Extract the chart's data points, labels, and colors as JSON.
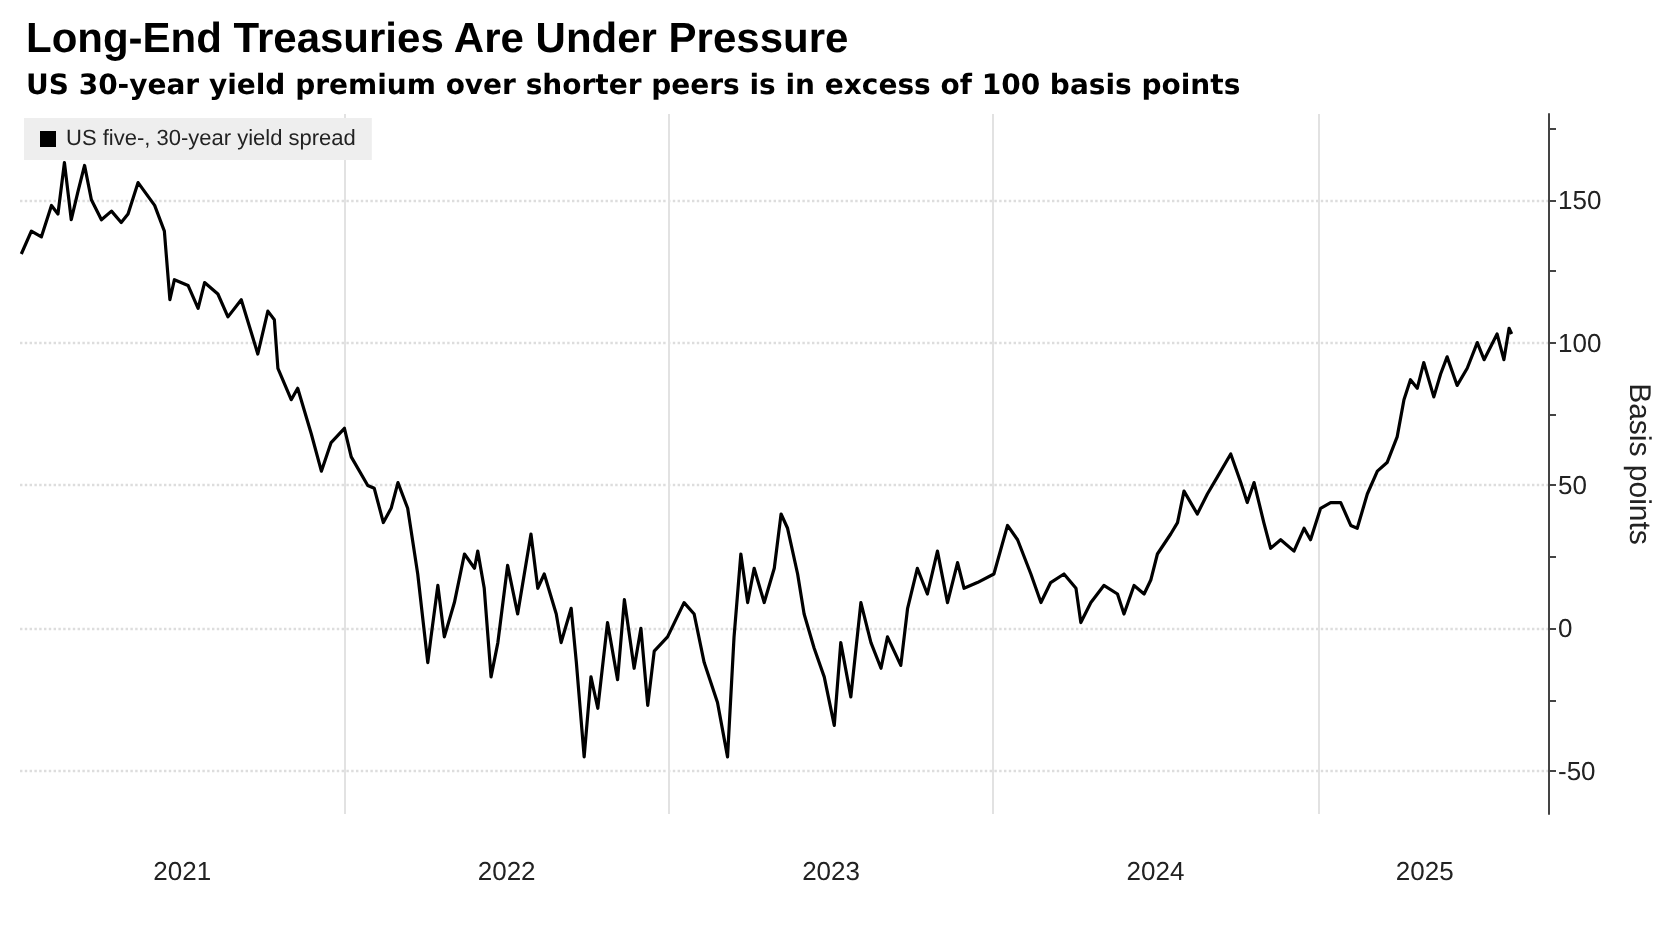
{
  "chart_data": {
    "type": "line",
    "title": "Long-End Treasuries Are Under Pressure",
    "subtitle": "US 30-year yield premium over shorter peers is in excess of 100 basis points",
    "ylabel": "Basis points",
    "x": [
      2021.004,
      2021.035,
      2021.066,
      2021.097,
      2021.117,
      2021.137,
      2021.158,
      2021.179,
      2021.199,
      2021.22,
      2021.251,
      2021.282,
      2021.312,
      2021.333,
      2021.364,
      2021.415,
      2021.445,
      2021.462,
      2021.476,
      2021.518,
      2021.549,
      2021.569,
      2021.61,
      2021.641,
      2021.682,
      2021.733,
      2021.764,
      2021.784,
      2021.795,
      2021.836,
      2021.856,
      2021.898,
      2021.929,
      2021.959,
      2022.0,
      2022.021,
      2022.072,
      2022.092,
      2022.12,
      2022.144,
      2022.165,
      2022.195,
      2022.226,
      2022.257,
      2022.267,
      2022.288,
      2022.308,
      2022.339,
      2022.37,
      2022.401,
      2022.411,
      2022.431,
      2022.452,
      2022.473,
      2022.503,
      2022.534,
      2022.575,
      2022.596,
      2022.616,
      2022.653,
      2022.668,
      2022.699,
      2022.715,
      2022.739,
      2022.76,
      2022.781,
      2022.811,
      2022.842,
      2022.863,
      2022.893,
      2022.914,
      2022.935,
      2022.955,
      2022.996,
      2023.047,
      2023.078,
      2023.109,
      2023.15,
      2023.181,
      2023.201,
      2023.222,
      2023.243,
      2023.263,
      2023.294,
      2023.325,
      2023.346,
      2023.366,
      2023.397,
      2023.417,
      2023.448,
      2023.479,
      2023.51,
      2023.53,
      2023.561,
      2023.592,
      2023.623,
      2023.654,
      2023.674,
      2023.715,
      2023.736,
      2023.766,
      2023.797,
      2023.828,
      2023.859,
      2023.89,
      2023.91,
      2023.951,
      2024.002,
      2024.044,
      2024.075,
      2024.116,
      2024.147,
      2024.177,
      2024.218,
      2024.255,
      2024.27,
      2024.301,
      2024.341,
      2024.383,
      2024.403,
      2024.434,
      2024.465,
      2024.486,
      2024.506,
      2024.547,
      2024.568,
      2024.588,
      2024.629,
      2024.66,
      2024.691,
      2024.732,
      2024.763,
      2024.783,
      2024.804,
      2024.834,
      2024.855,
      2024.886,
      2024.927,
      2024.958,
      2024.978,
      2025.009,
      2025.04,
      2025.071,
      2025.102,
      2025.122,
      2025.153,
      2025.184,
      2025.214,
      2025.245,
      2025.266,
      2025.286,
      2025.307,
      2025.327,
      2025.358,
      2025.379,
      2025.399,
      2025.43,
      2025.461,
      2025.492,
      2025.513,
      2025.553,
      2025.574,
      2025.59,
      2025.598
    ],
    "series": [
      {
        "name": "US five-, 30-year yield spread",
        "color": "#000000",
        "values": [
          131,
          139,
          137,
          148,
          145,
          163,
          143,
          153,
          162,
          150,
          143,
          146,
          142,
          145,
          156,
          148,
          139,
          115,
          122,
          120,
          112,
          121,
          117,
          109,
          115,
          96,
          111,
          108,
          91,
          80,
          84,
          68,
          55,
          65,
          70,
          60,
          50,
          49,
          37,
          42,
          51,
          42,
          19,
          -12,
          -3,
          15,
          -3,
          9,
          26,
          21,
          27,
          14,
          -17,
          -5,
          22,
          5,
          33,
          14,
          19,
          5,
          -5,
          7,
          -12,
          -45,
          -17,
          -28,
          2,
          -18,
          10,
          -14,
          0,
          -27,
          -8,
          -3,
          9,
          5,
          -12,
          -26,
          -45,
          -3,
          26,
          9,
          21,
          9,
          21,
          40,
          35,
          19,
          5,
          -7,
          -17,
          -34,
          -5,
          -24,
          9,
          -5,
          -14,
          -3,
          -13,
          7,
          21,
          12,
          27,
          9,
          23,
          14,
          16,
          19,
          36,
          31,
          19,
          9,
          16,
          19,
          14,
          2,
          9,
          15,
          12,
          5,
          15,
          12,
          17,
          26,
          33,
          37,
          48,
          40,
          47,
          53,
          61,
          51,
          44,
          51,
          37,
          28,
          31,
          27,
          35,
          31,
          42,
          44,
          44,
          36,
          35,
          47,
          55,
          58,
          67,
          80,
          87,
          84,
          93,
          81,
          89,
          95,
          85,
          91,
          100,
          94,
          103,
          94,
          105,
          103
        ]
      }
    ],
    "xlim": [
      2021,
      2025.71
    ],
    "xticks": [
      {
        "value": 2021.5,
        "label": "2021"
      },
      {
        "value": 2022,
        "label": null
      },
      {
        "value": 2022.5,
        "label": "2022"
      },
      {
        "value": 2023,
        "label": null
      },
      {
        "value": 2023.5,
        "label": "2023"
      },
      {
        "value": 2024,
        "label": null
      },
      {
        "value": 2024.5,
        "label": "2024"
      },
      {
        "value": 2025,
        "label": null
      },
      {
        "value": 2025.33,
        "label": "2025"
      }
    ],
    "ylim": [
      -65,
      180
    ],
    "yticks": [
      -50,
      {
        "value": -25,
        "label": null
      },
      0,
      {
        "value": 25,
        "label": null
      },
      50,
      {
        "value": 75,
        "label": null
      },
      100,
      {
        "value": 125,
        "label": null
      },
      150,
      {
        "value": 175,
        "label": null
      }
    ],
    "grid": true,
    "legend": "top left",
    "marker": "none",
    "line_style": "solid"
  }
}
